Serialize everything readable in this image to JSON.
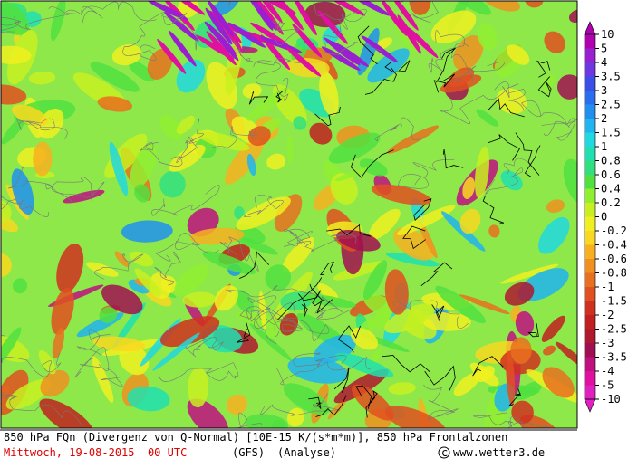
{
  "footer": {
    "line1": "850 hPa FQn (Divergenz von Q-Normal) [10E-15 K/(s*m*m)], 850 hPa Frontalzonen",
    "date": "Mittwoch, 19-08-2015  00 UTC",
    "model": "(GFS)",
    "run": "(Analyse)",
    "site": "www.wetter3.de"
  },
  "legend": {
    "labels": [
      "10",
      "5",
      "4",
      "3.5",
      "3",
      "2.5",
      "2",
      "1.5",
      "1",
      "0.8",
      "0.6",
      "0.4",
      "0.2",
      "0",
      "-0.2",
      "-0.4",
      "-0.6",
      "-0.8",
      "-1",
      "-1.5",
      "-2",
      "-2.5",
      "-3",
      "-3.5",
      "-4",
      "-5",
      "-10"
    ],
    "colors": [
      "#b000b0",
      "#9a1fd0",
      "#6e38e0",
      "#3a4fe8",
      "#2a6ef0",
      "#2090f0",
      "#20b4f0",
      "#20d8e0",
      "#20e0b0",
      "#30e080",
      "#50e040",
      "#90f030",
      "#c8f020",
      "#f0f020",
      "#f8d820",
      "#f8b020",
      "#f09020",
      "#e87020",
      "#e05020",
      "#d03020",
      "#c02020",
      "#b01830",
      "#a01050",
      "#c01080",
      "#e010a0",
      "#e020c0"
    ]
  }
}
